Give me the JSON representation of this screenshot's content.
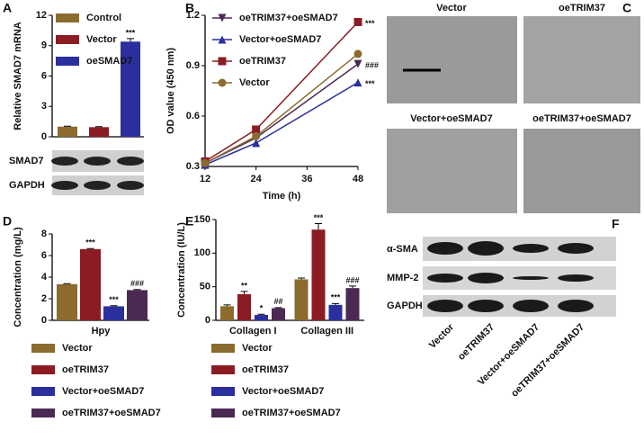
{
  "chart_data": [
    {
      "panel": "A",
      "type": "bar",
      "ylabel": "Relative SMAD7 mRNA",
      "ylim": [
        0,
        12
      ],
      "yticks": [
        0,
        3,
        6,
        9,
        12
      ],
      "legend": "top-left",
      "series": [
        {
          "name": "Control",
          "color": "#8b6b2e",
          "values": [
            1.0
          ],
          "errors": [
            0.05
          ],
          "significance": [
            null
          ]
        },
        {
          "name": "Vector",
          "color": "#8b1c24",
          "values": [
            0.95
          ],
          "errors": [
            0.05
          ],
          "significance": [
            null
          ]
        },
        {
          "name": "oeSMAD7",
          "color": "#2b2f9e",
          "values": [
            9.4
          ],
          "errors": [
            0.3
          ],
          "significance": [
            "***"
          ]
        }
      ],
      "blot_rows": [
        "SMAD7",
        "GAPDH"
      ]
    },
    {
      "panel": "B",
      "type": "line",
      "xlabel": "Time (h)",
      "ylabel": "OD value (450 nm)",
      "xlim": [
        12,
        48
      ],
      "xticks": [
        12,
        24,
        36,
        48
      ],
      "ylim": [
        0.3,
        1.2
      ],
      "yticks": [
        0.3,
        0.6,
        0.9,
        1.2
      ],
      "legend": "top-left",
      "series": [
        {
          "name": "oeTRIM37+oeSMAD7",
          "color": "#4a2a52",
          "marker": "triangle-down",
          "x": [
            12,
            24,
            48
          ],
          "values": [
            0.32,
            0.47,
            0.91
          ],
          "significance": [
            null,
            null,
            "###"
          ]
        },
        {
          "name": "Vector+oeSMAD7",
          "color": "#2b2f9e",
          "marker": "triangle",
          "x": [
            12,
            24,
            48
          ],
          "values": [
            0.31,
            0.44,
            0.8
          ],
          "significance": [
            null,
            null,
            "***"
          ]
        },
        {
          "name": "oeTRIM37",
          "color": "#8b1c24",
          "marker": "square",
          "x": [
            12,
            24,
            48
          ],
          "values": [
            0.33,
            0.52,
            1.16
          ],
          "significance": [
            null,
            null,
            "***"
          ]
        },
        {
          "name": "Vector",
          "color": "#8b6b2e",
          "marker": "circle",
          "x": [
            12,
            24,
            48
          ],
          "values": [
            0.32,
            0.48,
            0.97
          ],
          "significance": [
            null,
            null,
            null
          ]
        }
      ]
    },
    {
      "panel": "D",
      "type": "bar",
      "ylabel": "Concentration (mg/L)",
      "categories": [
        "Hpy"
      ],
      "ylim": [
        0,
        8
      ],
      "yticks": [
        0,
        2,
        4,
        6,
        8
      ],
      "legend": "bottom",
      "series": [
        {
          "name": "Vector",
          "color": "#8b6b2e",
          "values": [
            3.35
          ],
          "errors": [
            0.05
          ],
          "significance": [
            null
          ]
        },
        {
          "name": "oeTRIM37",
          "color": "#8b1c24",
          "values": [
            6.6
          ],
          "errors": [
            0.05
          ],
          "significance": [
            "***"
          ]
        },
        {
          "name": "Vector+oeSMAD7",
          "color": "#2b2f9e",
          "values": [
            1.3
          ],
          "errors": [
            0.05
          ],
          "significance": [
            "***"
          ]
        },
        {
          "name": "oeTRIM37+oeSMAD7",
          "color": "#4a2a52",
          "values": [
            2.8
          ],
          "errors": [
            0.05
          ],
          "significance": [
            "###"
          ]
        }
      ]
    },
    {
      "panel": "E",
      "type": "bar",
      "ylabel": "Concentration (IU/L)",
      "categories": [
        "Collagen I",
        "Collagen III"
      ],
      "ylim": [
        0,
        150
      ],
      "yticks": [
        0,
        50,
        100,
        150
      ],
      "legend": "bottom",
      "series": [
        {
          "name": "Vector",
          "color": "#8b6b2e",
          "values": [
            21,
            61
          ],
          "errors": [
            2,
            2
          ],
          "significance": [
            null,
            null
          ]
        },
        {
          "name": "oeTRIM37",
          "color": "#8b1c24",
          "values": [
            39,
            135
          ],
          "errors": [
            4,
            9
          ],
          "significance": [
            "**",
            "***"
          ]
        },
        {
          "name": "Vector+oeSMAD7",
          "color": "#2b2f9e",
          "values": [
            8,
            23
          ],
          "errors": [
            1,
            2
          ],
          "significance": [
            "*",
            "***"
          ]
        },
        {
          "name": "oeTRIM37+oeSMAD7",
          "color": "#4a2a52",
          "values": [
            18,
            48
          ],
          "errors": [
            1,
            3
          ],
          "significance": [
            "##",
            "###"
          ]
        }
      ]
    }
  ],
  "micrographs": {
    "panel": "C",
    "captions": [
      "Vector",
      "oeTRIM37",
      "Vector+oeSMAD7",
      "oeTRIM37+oeSMAD7"
    ]
  },
  "western_blot": {
    "panel": "F",
    "rows": [
      "α-SMA",
      "MMP-2",
      "GAPDH"
    ],
    "lanes": [
      "Vector",
      "oeTRIM37",
      "Vector+oeSMAD7",
      "oeTRIM37+oeSMAD7"
    ]
  }
}
